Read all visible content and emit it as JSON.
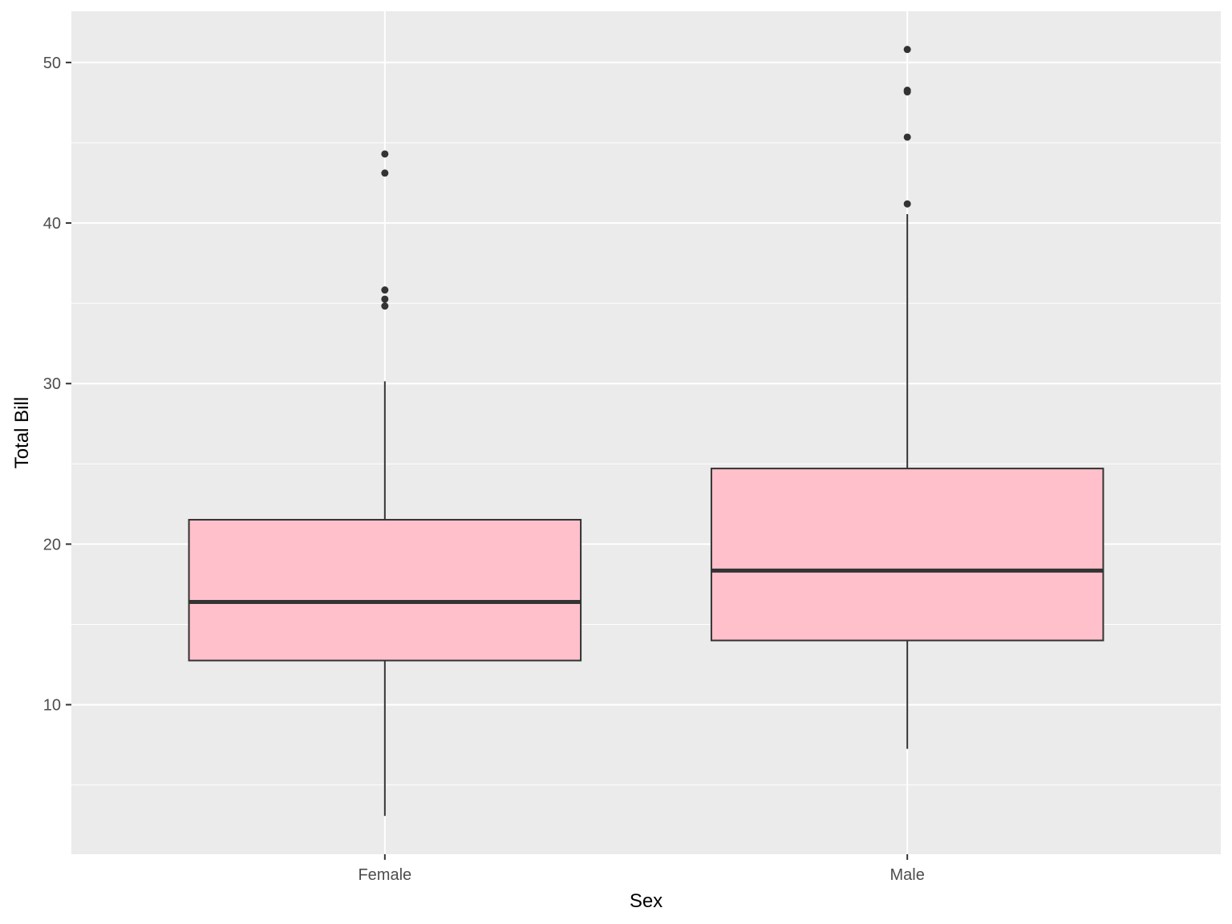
{
  "chart_data": {
    "type": "boxplot",
    "title": "",
    "xlabel": "Sex",
    "ylabel": "Total Bill",
    "categories": [
      "Female",
      "Male"
    ],
    "boxes": [
      {
        "category": "Female",
        "whisker_low": 3.07,
        "q1": 12.75,
        "median": 16.4,
        "q3": 21.52,
        "whisker_high": 30.14,
        "outliers": [
          34.83,
          35.26,
          35.83,
          43.11,
          44.3
        ]
      },
      {
        "category": "Male",
        "whisker_low": 7.25,
        "q1": 14.0,
        "median": 18.35,
        "q3": 24.71,
        "whisker_high": 40.55,
        "outliers": [
          41.19,
          45.35,
          48.17,
          48.27,
          50.81
        ]
      }
    ],
    "ylim": [
      0.686,
      53.192
    ],
    "yticks": [
      10,
      20,
      30,
      40,
      50
    ],
    "grid": true,
    "legend": "none",
    "colors": {
      "fill": "#FFC0CB",
      "stroke": "#333333",
      "panel": "#EBEBEB",
      "grid": "#FFFFFF"
    }
  }
}
